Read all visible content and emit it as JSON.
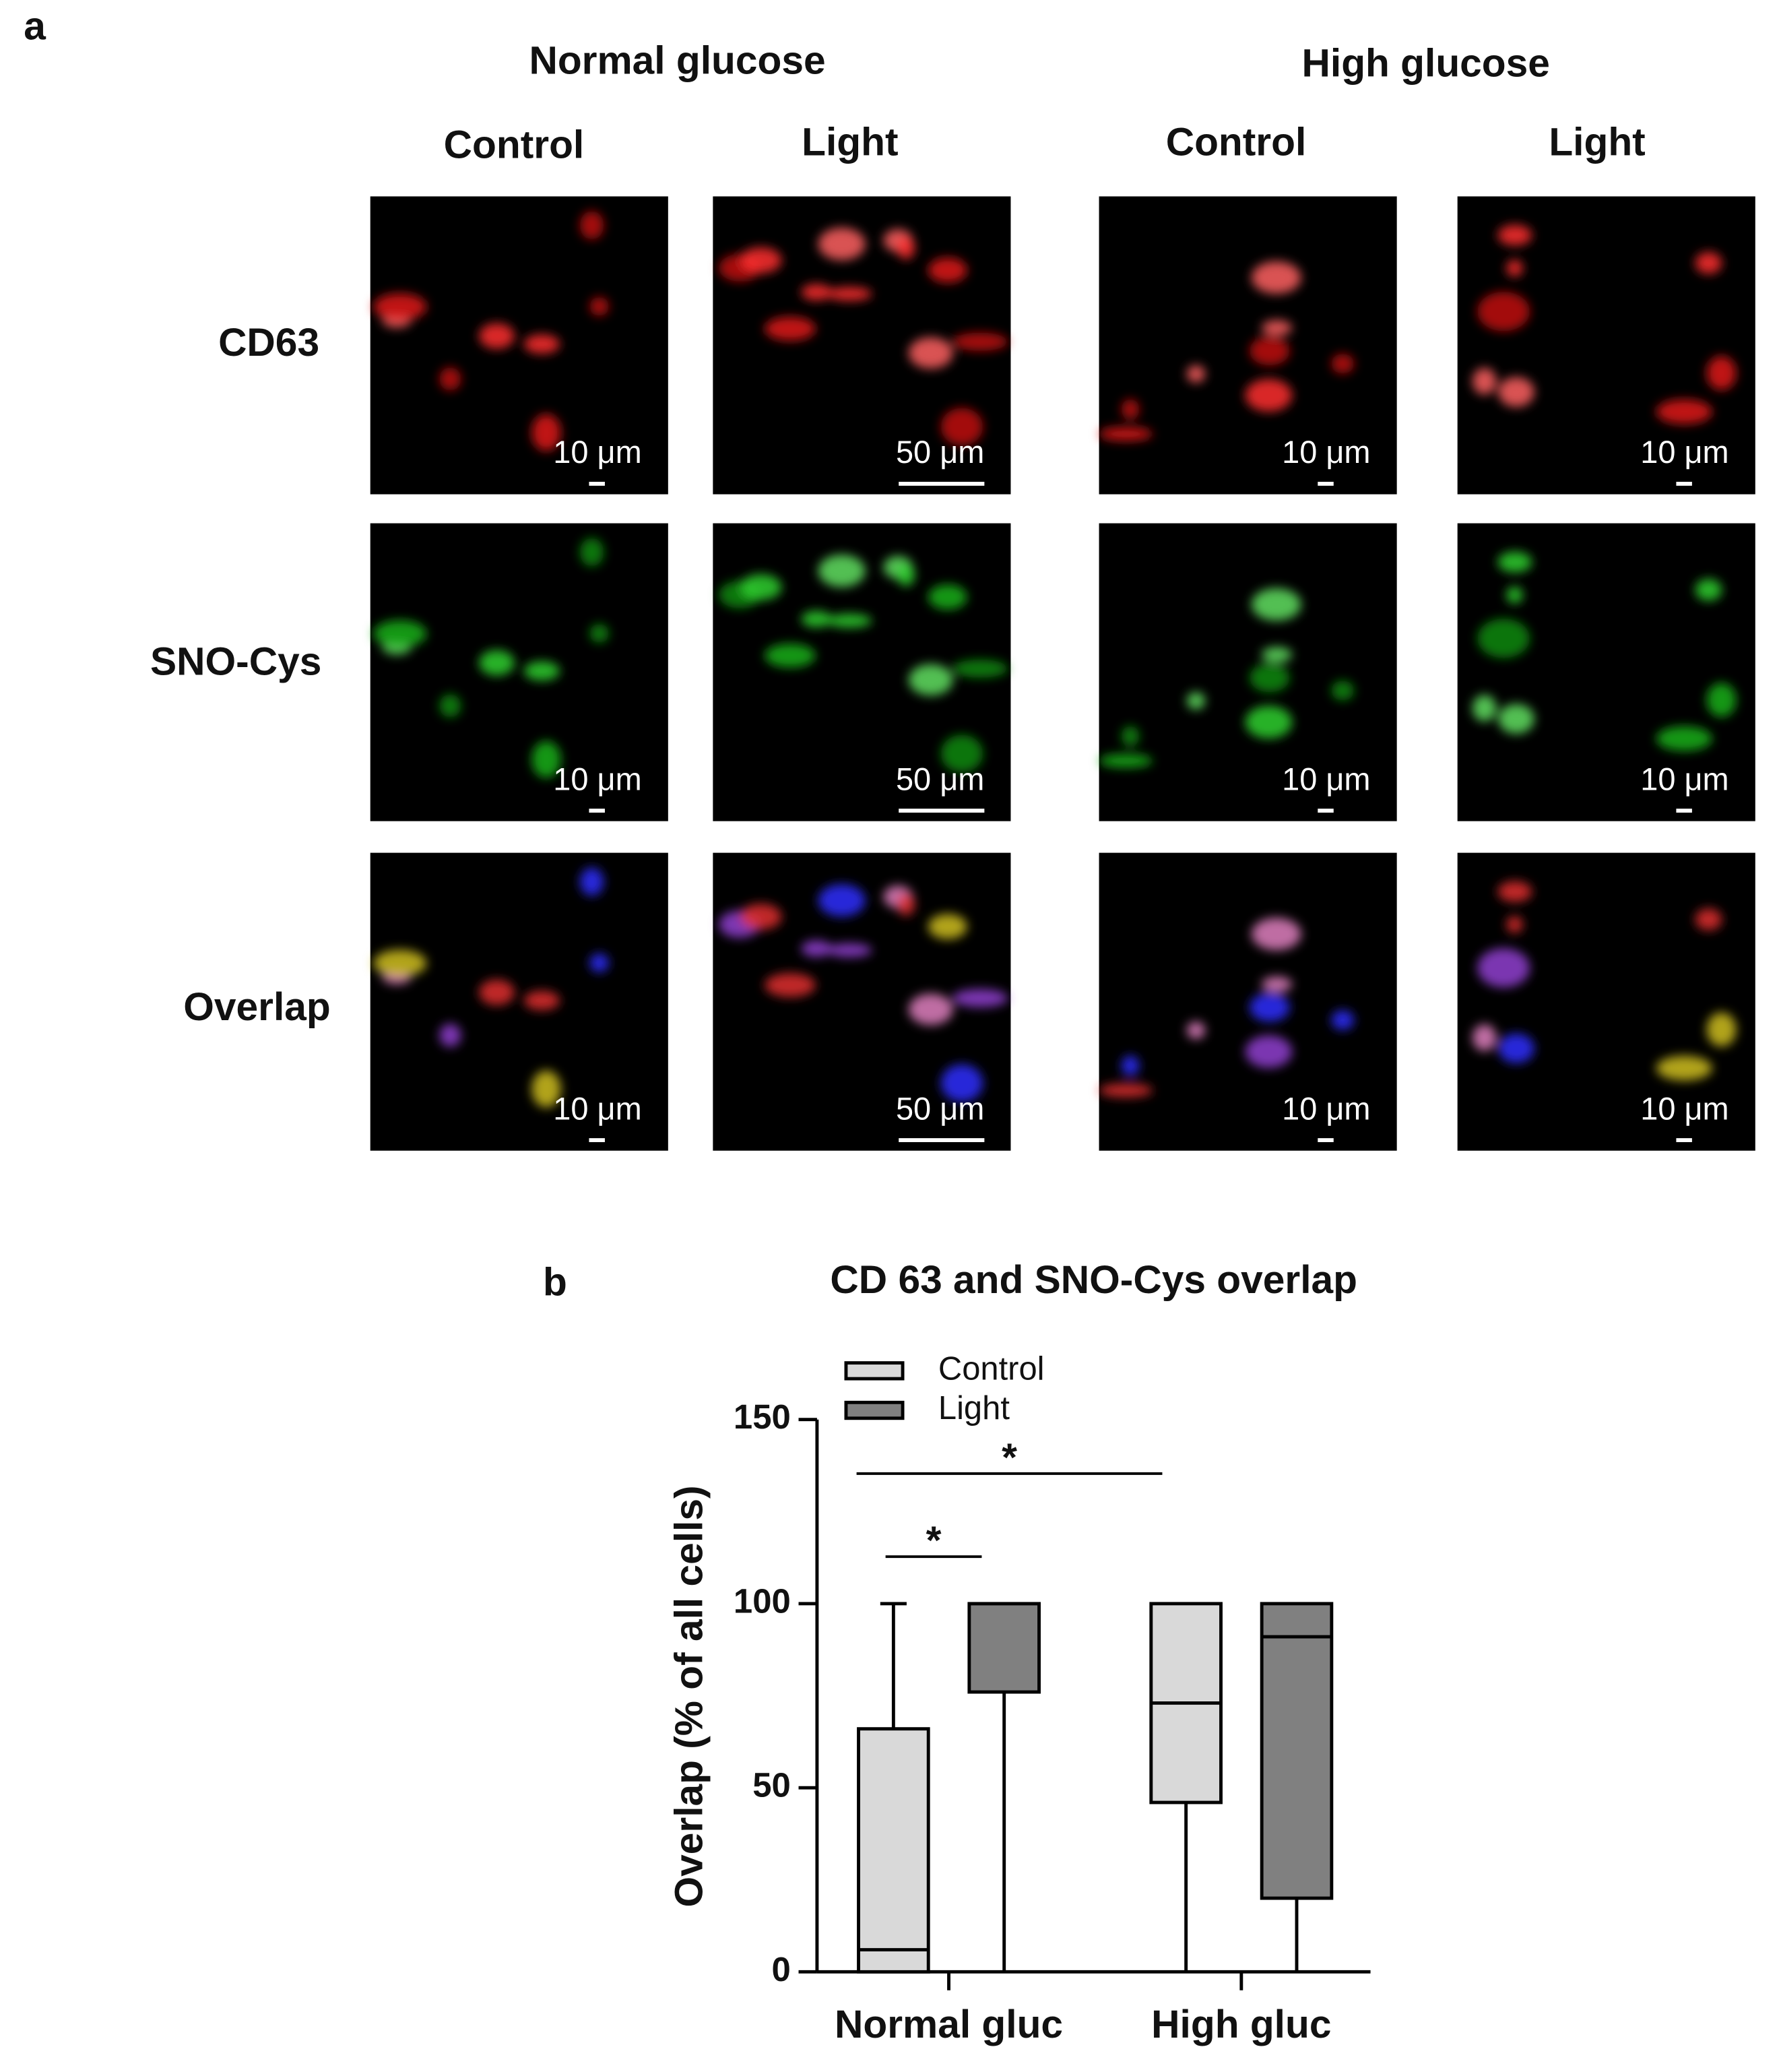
{
  "panel_a": {
    "label": "a",
    "groups": [
      {
        "title": "Normal glucose",
        "columns": [
          "Control",
          "Light"
        ]
      },
      {
        "title": "High glucose",
        "columns": [
          "Control",
          "Light"
        ]
      }
    ],
    "rows": [
      "CD63",
      "SNO-Cys",
      "Overlap"
    ],
    "scale_bars": [
      [
        "10 μm",
        "50 μm",
        "10 μm",
        "10 μm"
      ],
      [
        "10 μm",
        "50 μm",
        "10 μm",
        "10 μm"
      ],
      [
        "10 μm",
        "50 μm",
        "10 μm",
        "10 μm"
      ]
    ]
  },
  "chart_data": {
    "type": "box",
    "panel_label": "b",
    "title": "CD 63 and SNO-Cys overlap",
    "y_label": "Overlap (% of all cells)",
    "categories": [
      "Normal gluc",
      "High gluc"
    ],
    "series": [
      {
        "name": "Control",
        "color": "#d9d9d9",
        "values": [
          {
            "min": 0,
            "q1": 0,
            "median": 6,
            "q3": 66,
            "max": 100
          },
          {
            "min": 0,
            "q1": 46,
            "median": 73,
            "q3": 100,
            "max": 100
          }
        ]
      },
      {
        "name": "Light",
        "color": "#808080",
        "values": [
          {
            "min": 0,
            "q1": 76,
            "median": 100,
            "q3": 100,
            "max": 100
          },
          {
            "min": 0,
            "q1": 20,
            "median": 91,
            "q3": 100,
            "max": 100
          }
        ]
      }
    ],
    "ylim": [
      0,
      150
    ],
    "yticks": [
      0,
      50,
      100,
      150
    ],
    "significance": [
      "*",
      "*"
    ]
  }
}
